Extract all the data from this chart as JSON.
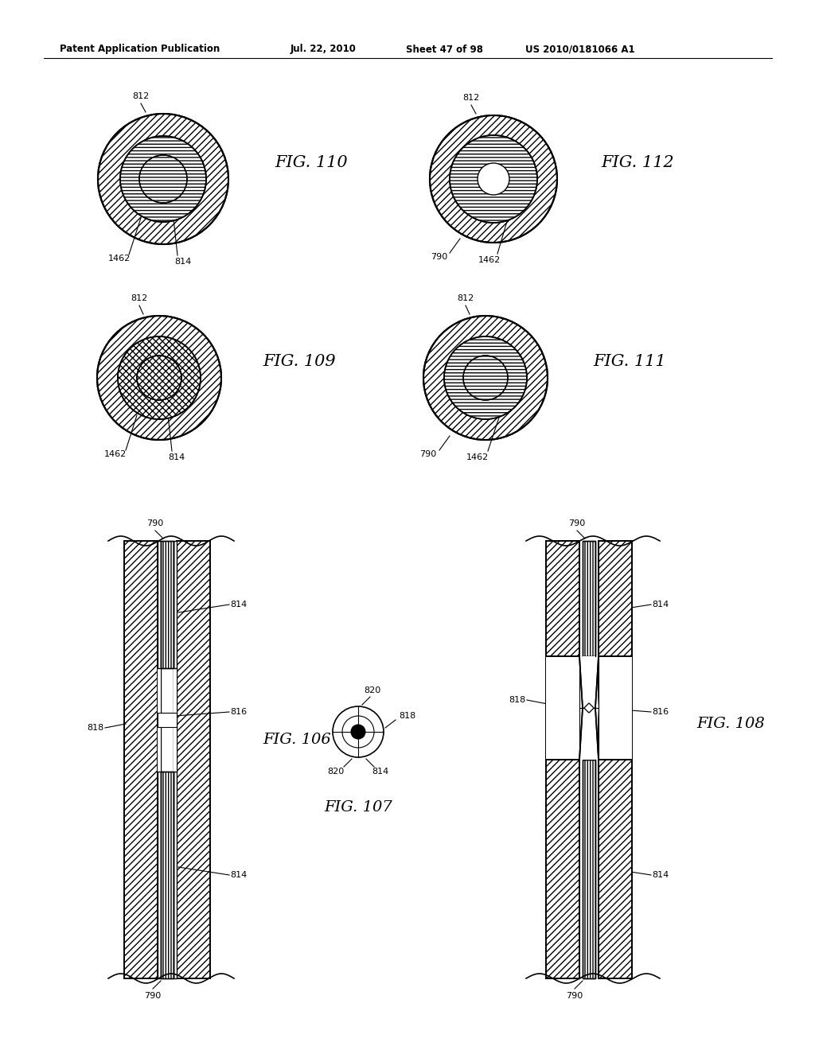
{
  "bg_color": "#ffffff",
  "header_text": "Patent Application Publication",
  "header_date": "Jul. 22, 2010",
  "header_sheet": "Sheet 47 of 98",
  "header_patent": "US 2010/0181066 A1"
}
